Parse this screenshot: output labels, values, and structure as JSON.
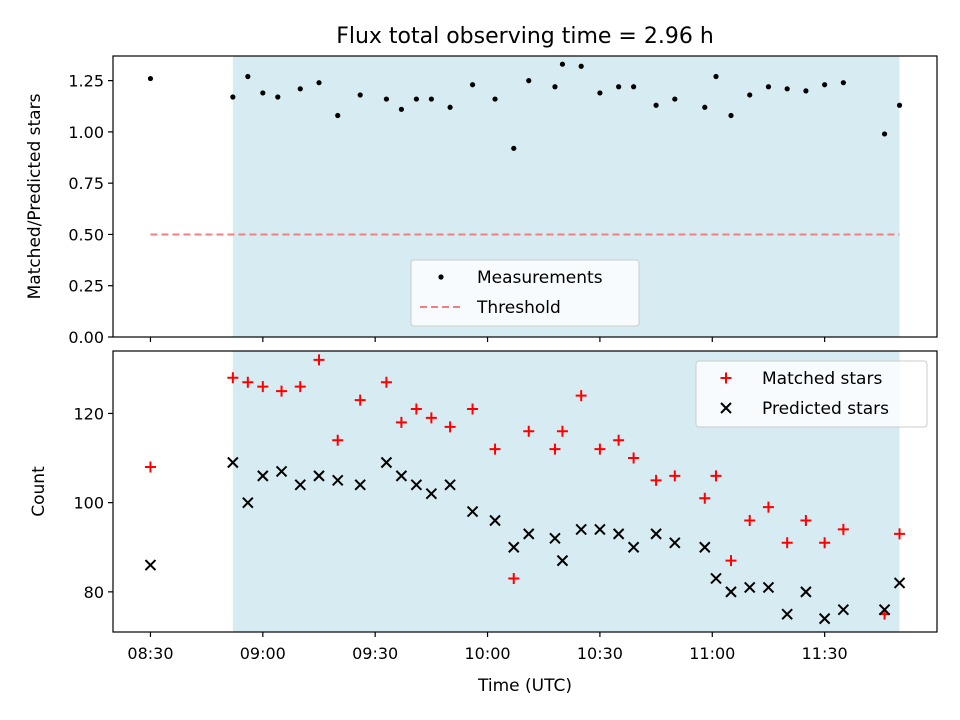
{
  "chart_data": [
    {
      "type": "scatter",
      "title": "Flux total observing time = 2.96 h",
      "xlabel": "",
      "ylabel": "Matched/Predicted stars",
      "xlim": [
        "08:20",
        "12:00"
      ],
      "ylim": [
        0,
        1.37
      ],
      "yticks": [
        "0.00",
        "0.25",
        "0.50",
        "0.75",
        "1.00",
        "1.25"
      ],
      "xticks": [
        "08:30",
        "09:00",
        "09:30",
        "10:00",
        "10:30",
        "11:00",
        "11:30"
      ],
      "shaded_span": [
        "08:52",
        "11:50"
      ],
      "legend_position": "bottom-center",
      "series": [
        {
          "name": "Measurements",
          "color": "#000000",
          "marker": "dot",
          "points": [
            [
              "08:30",
              1.26
            ],
            [
              "08:52",
              1.17
            ],
            [
              "08:56",
              1.27
            ],
            [
              "09:00",
              1.19
            ],
            [
              "09:04",
              1.17
            ],
            [
              "09:10",
              1.21
            ],
            [
              "09:15",
              1.24
            ],
            [
              "09:20",
              1.08
            ],
            [
              "09:26",
              1.18
            ],
            [
              "09:33",
              1.16
            ],
            [
              "09:37",
              1.11
            ],
            [
              "09:41",
              1.16
            ],
            [
              "09:45",
              1.16
            ],
            [
              "09:50",
              1.12
            ],
            [
              "09:56",
              1.23
            ],
            [
              "10:02",
              1.16
            ],
            [
              "10:07",
              0.92
            ],
            [
              "10:11",
              1.25
            ],
            [
              "10:18",
              1.22
            ],
            [
              "10:20",
              1.33
            ],
            [
              "10:25",
              1.32
            ],
            [
              "10:30",
              1.19
            ],
            [
              "10:35",
              1.22
            ],
            [
              "10:39",
              1.22
            ],
            [
              "10:45",
              1.13
            ],
            [
              "10:50",
              1.16
            ],
            [
              "10:58",
              1.12
            ],
            [
              "11:01",
              1.27
            ],
            [
              "11:05",
              1.08
            ],
            [
              "11:10",
              1.18
            ],
            [
              "11:15",
              1.22
            ],
            [
              "11:20",
              1.21
            ],
            [
              "11:25",
              1.2
            ],
            [
              "11:30",
              1.23
            ],
            [
              "11:35",
              1.24
            ],
            [
              "11:46",
              0.99
            ],
            [
              "11:50",
              1.13
            ]
          ]
        },
        {
          "name": "Threshold",
          "color": "#f08080",
          "style": "dashed",
          "points": [
            [
              "08:30",
              0.5
            ],
            [
              "11:50",
              0.5
            ]
          ]
        }
      ]
    },
    {
      "type": "scatter",
      "title": "",
      "xlabel": "Time (UTC)",
      "ylabel": "Count",
      "xlim": [
        "08:20",
        "12:00"
      ],
      "ylim": [
        71,
        134
      ],
      "yticks": [
        "80",
        "100",
        "120"
      ],
      "xticks": [
        "08:30",
        "09:00",
        "09:30",
        "10:00",
        "10:30",
        "11:00",
        "11:30"
      ],
      "shaded_span": [
        "08:52",
        "11:50"
      ],
      "legend_position": "top-right",
      "series": [
        {
          "name": "Matched stars",
          "color": "#ff0000",
          "marker": "plus",
          "points": [
            [
              "08:30",
              108
            ],
            [
              "08:52",
              128
            ],
            [
              "08:56",
              127
            ],
            [
              "09:00",
              126
            ],
            [
              "09:05",
              125
            ],
            [
              "09:10",
              126
            ],
            [
              "09:15",
              132
            ],
            [
              "09:20",
              114
            ],
            [
              "09:26",
              123
            ],
            [
              "09:33",
              127
            ],
            [
              "09:37",
              118
            ],
            [
              "09:41",
              121
            ],
            [
              "09:45",
              119
            ],
            [
              "09:50",
              117
            ],
            [
              "09:56",
              121
            ],
            [
              "10:02",
              112
            ],
            [
              "10:07",
              83
            ],
            [
              "10:11",
              116
            ],
            [
              "10:18",
              112
            ],
            [
              "10:20",
              116
            ],
            [
              "10:25",
              124
            ],
            [
              "10:30",
              112
            ],
            [
              "10:35",
              114
            ],
            [
              "10:39",
              110
            ],
            [
              "10:45",
              105
            ],
            [
              "10:50",
              106
            ],
            [
              "10:58",
              101
            ],
            [
              "11:01",
              106
            ],
            [
              "11:05",
              87
            ],
            [
              "11:10",
              96
            ],
            [
              "11:15",
              99
            ],
            [
              "11:20",
              91
            ],
            [
              "11:25",
              96
            ],
            [
              "11:30",
              91
            ],
            [
              "11:35",
              94
            ],
            [
              "11:46",
              75
            ],
            [
              "11:50",
              93
            ]
          ]
        },
        {
          "name": "Predicted stars",
          "color": "#000000",
          "marker": "x",
          "points": [
            [
              "08:30",
              86
            ],
            [
              "08:52",
              109
            ],
            [
              "08:56",
              100
            ],
            [
              "09:00",
              106
            ],
            [
              "09:05",
              107
            ],
            [
              "09:10",
              104
            ],
            [
              "09:15",
              106
            ],
            [
              "09:20",
              105
            ],
            [
              "09:26",
              104
            ],
            [
              "09:33",
              109
            ],
            [
              "09:37",
              106
            ],
            [
              "09:41",
              104
            ],
            [
              "09:45",
              102
            ],
            [
              "09:50",
              104
            ],
            [
              "09:56",
              98
            ],
            [
              "10:02",
              96
            ],
            [
              "10:07",
              90
            ],
            [
              "10:11",
              93
            ],
            [
              "10:18",
              92
            ],
            [
              "10:20",
              87
            ],
            [
              "10:25",
              94
            ],
            [
              "10:30",
              94
            ],
            [
              "10:35",
              93
            ],
            [
              "10:39",
              90
            ],
            [
              "10:45",
              93
            ],
            [
              "10:50",
              91
            ],
            [
              "10:58",
              90
            ],
            [
              "11:01",
              83
            ],
            [
              "11:05",
              80
            ],
            [
              "11:10",
              81
            ],
            [
              "11:15",
              81
            ],
            [
              "11:20",
              75
            ],
            [
              "11:25",
              80
            ],
            [
              "11:30",
              74
            ],
            [
              "11:35",
              76
            ],
            [
              "11:46",
              76
            ],
            [
              "11:50",
              82
            ]
          ]
        }
      ]
    }
  ]
}
